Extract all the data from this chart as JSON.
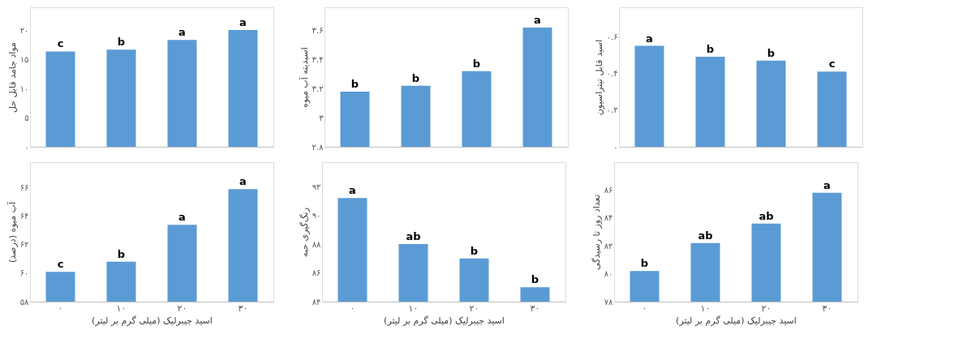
{
  "chart_data": [
    {
      "type": "bar",
      "ylabel": "مواد جامد قابل حل",
      "categories": [
        "۰",
        "۱۰",
        "۲۰",
        "۳۰"
      ],
      "values": [
        16.4,
        16.7,
        18.4,
        20.1
      ],
      "color": "#5b9bd5",
      "ylim": [
        0,
        24
      ],
      "yticks": [
        {
          "value": 0,
          "label": "۰"
        },
        {
          "value": 5,
          "label": "۵"
        },
        {
          "value": 10,
          "label": "۱۰"
        },
        {
          "value": 15,
          "label": "۱۵"
        },
        {
          "value": 20,
          "label": "۲۰"
        }
      ],
      "grid": false,
      "tick_labels": "y",
      "annotations": [
        {
          "text": "c",
          "x": "۰",
          "y": 16.4
        },
        {
          "text": "b",
          "x": "۱۰",
          "y": 16.7
        },
        {
          "text": "a",
          "x": "۲۰",
          "y": 18.4
        },
        {
          "text": "a",
          "x": "۳۰",
          "y": 20.1
        }
      ]
    },
    {
      "type": "bar",
      "ylabel": "اسیدیته آب میوه",
      "categories": [
        "۰",
        "۱۰",
        "۲۰",
        "۳۰"
      ],
      "values": [
        3.18,
        3.22,
        3.32,
        3.62
      ],
      "color": "#5b9bd5",
      "ylim": [
        2.8,
        3.76
      ],
      "yticks": [
        {
          "value": 2.8,
          "label": "۲.۸"
        },
        {
          "value": 3,
          "label": "۳"
        },
        {
          "value": 3.2,
          "label": "۳.۲"
        },
        {
          "value": 3.4,
          "label": "۳.۴"
        },
        {
          "value": 3.6,
          "label": "۳.۶"
        }
      ],
      "grid": false,
      "tick_labels": "y",
      "annotations": [
        {
          "text": "b",
          "x": "۰",
          "y": 3.18
        },
        {
          "text": "b",
          "x": "۱۰",
          "y": 3.22
        },
        {
          "text": "b",
          "x": "۲۰",
          "y": 3.32
        },
        {
          "text": "a",
          "x": "۳۰",
          "y": 3.62
        }
      ]
    },
    {
      "type": "bar",
      "ylabel": "اسید قابل تیتراسیون",
      "categories": [
        "۰",
        "۱۰",
        "۲۰",
        "۳۰"
      ],
      "values": [
        0.55,
        0.49,
        0.47,
        0.41
      ],
      "color": "#5b9bd5",
      "ylim": [
        0,
        0.76
      ],
      "yticks": [
        {
          "value": 0,
          "label": "۰"
        },
        {
          "value": 0.2,
          "label": "۰.۲"
        },
        {
          "value": 0.4,
          "label": "۰.۴"
        },
        {
          "value": 0.6,
          "label": "۰.۶"
        }
      ],
      "grid": false,
      "tick_labels": "y",
      "annotations": [
        {
          "text": "a",
          "x": "۰",
          "y": 0.55
        },
        {
          "text": "b",
          "x": "۱۰",
          "y": 0.49
        },
        {
          "text": "b",
          "x": "۲۰",
          "y": 0.47
        },
        {
          "text": "c",
          "x": "۳۰",
          "y": 0.41
        }
      ]
    },
    {
      "type": "bar",
      "xlabel": "اسید جیبرلیک (میلی گرم بر لیتر)",
      "ylabel": "آب میوه (درصد)",
      "categories": [
        "۰",
        "۱۰",
        "۲۰",
        "۳۰"
      ],
      "values": [
        60.1,
        60.8,
        63.4,
        65.9
      ],
      "color": "#5b9bd5",
      "ylim": [
        58,
        67.8
      ],
      "yticks": [
        {
          "value": 58,
          "label": "۵۸"
        },
        {
          "value": 60,
          "label": "۶۰"
        },
        {
          "value": 62,
          "label": "۶۲"
        },
        {
          "value": 64,
          "label": "۶۴"
        },
        {
          "value": 66,
          "label": "۶۶"
        }
      ],
      "grid": false,
      "annotations": [
        {
          "text": "c",
          "x": "۰",
          "y": 60.1
        },
        {
          "text": "b",
          "x": "۱۰",
          "y": 60.8
        },
        {
          "text": "a",
          "x": "۲۰",
          "y": 63.4
        },
        {
          "text": "a",
          "x": "۳۰",
          "y": 65.9
        }
      ]
    },
    {
      "type": "bar",
      "xlabel": "اسید جیبرلیک (میلی گرم بر لیتر)",
      "ylabel": "رنگ‌گیری حبه",
      "categories": [
        "۰",
        "۱۰",
        "۲۰",
        "۳۰"
      ],
      "values": [
        91.2,
        88.0,
        87.0,
        85.0
      ],
      "color": "#5b9bd5",
      "ylim": [
        84,
        93.7
      ],
      "yticks": [
        {
          "value": 84,
          "label": "۸۴"
        },
        {
          "value": 86,
          "label": "۸۶"
        },
        {
          "value": 88,
          "label": "۸۸"
        },
        {
          "value": 90,
          "label": "۹۰"
        },
        {
          "value": 92,
          "label": "۹۲"
        }
      ],
      "grid": false,
      "annotations": [
        {
          "text": "a",
          "x": "۰",
          "y": 91.2
        },
        {
          "text": "ab",
          "x": "۱۰",
          "y": 88.0
        },
        {
          "text": "b",
          "x": "۲۰",
          "y": 87.0
        },
        {
          "text": "b",
          "x": "۳۰",
          "y": 85.0
        }
      ]
    },
    {
      "type": "bar",
      "xlabel": "اسید جیبرلیک (میلی گرم بر لیتر)",
      "ylabel": "تعداد روز تا رسیدگی",
      "categories": [
        "۰",
        "۱۰",
        "۲۰",
        "۳۰"
      ],
      "values": [
        80.2,
        82.2,
        83.6,
        85.8
      ],
      "color": "#5b9bd5",
      "ylim": [
        78,
        88
      ],
      "yticks": [
        {
          "value": 78,
          "label": "۷۸"
        },
        {
          "value": 80,
          "label": "۸۰"
        },
        {
          "value": 82,
          "label": "۸۲"
        },
        {
          "value": 84,
          "label": "۸۴"
        },
        {
          "value": 86,
          "label": "۸۶"
        }
      ],
      "grid": false,
      "annotations": [
        {
          "text": "b",
          "x": "۰",
          "y": 80.2
        },
        {
          "text": "ab",
          "x": "۱۰",
          "y": 82.2
        },
        {
          "text": "ab",
          "x": "۲۰",
          "y": 83.6
        },
        {
          "text": "a",
          "x": "۳۰",
          "y": 85.8
        }
      ]
    }
  ]
}
